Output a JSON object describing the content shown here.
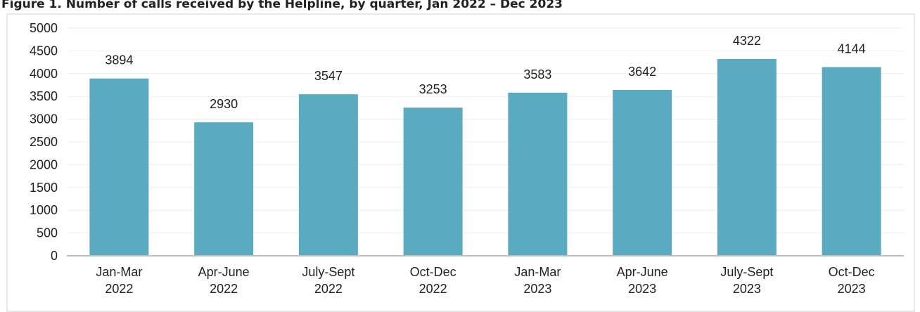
{
  "chart_data": {
    "type": "bar",
    "title": "Figure 1. Number of calls received by the Helpline, by quarter, Jan 2022 – Dec 2023",
    "categories": [
      "Jan-Mar 2022",
      "Apr-June 2022",
      "July-Sept 2022",
      "Oct-Dec 2022",
      "Jan-Mar 2023",
      "Apr-June 2023",
      "July-Sept 2023",
      "Oct-Dec 2023"
    ],
    "values": [
      3894,
      2930,
      3547,
      3253,
      3583,
      3642,
      4322,
      4144
    ],
    "color": "#5aabc0",
    "ylim": [
      0,
      5000
    ],
    "yticks": [
      0,
      500,
      1000,
      1500,
      2000,
      2500,
      3000,
      3500,
      4000,
      4500,
      5000
    ],
    "grid": true
  }
}
